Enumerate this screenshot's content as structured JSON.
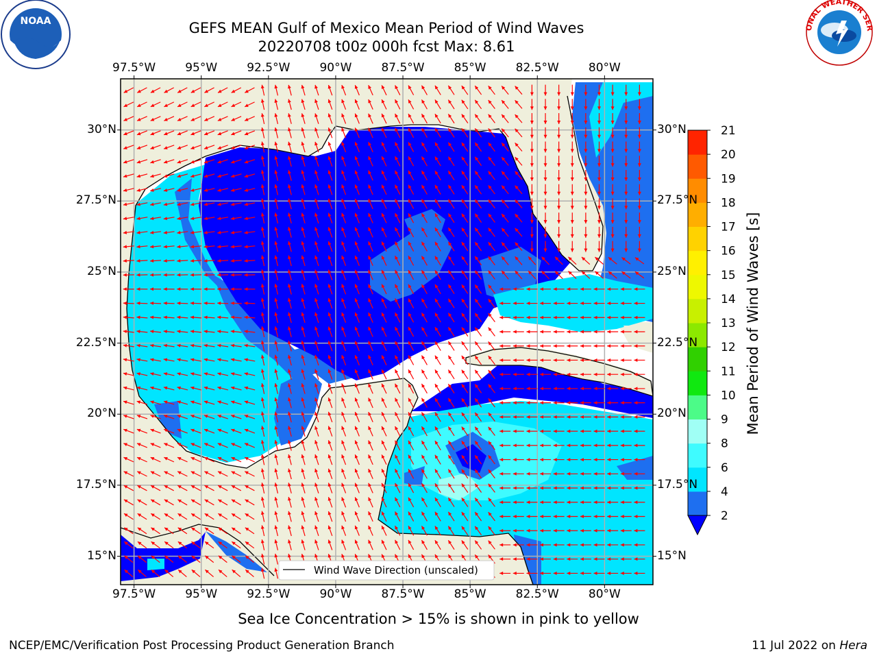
{
  "title": {
    "line1": "GEFS MEAN Gulf of Mexico Mean Period of Wind Waves",
    "line2": "20220708 t00z 000h fcst   Max: 8.61"
  },
  "logos": {
    "noaa": {
      "text": "NOAA",
      "ring_text": "NATIONAL OCEANIC AND ATMOSPHERIC ADMINISTRATION · U.S. DEPARTMENT OF COMMERCE"
    },
    "nws": {
      "ring_text": "NATIONAL WEATHER SERVICE"
    }
  },
  "map": {
    "lon_labels": [
      "97.5°W",
      "95°W",
      "92.5°W",
      "90°W",
      "87.5°W",
      "85°W",
      "82.5°W",
      "80°W"
    ],
    "lat_labels": [
      "30°N",
      "27.5°N",
      "25°N",
      "22.5°N",
      "20°N",
      "17.5°N",
      "15°N"
    ],
    "lon_range": [
      -98,
      -78.2
    ],
    "lat_range": [
      14,
      31.8
    ],
    "legend_label": "Wind Wave Direction (unscaled)",
    "colors": {
      "land": "#efefdc",
      "grid": "#b0b0b0",
      "arrow": "#ff0000",
      "coast": "#000000"
    }
  },
  "colorbar": {
    "label": "Mean Period of Wind Waves [s]",
    "ticks": [
      "2",
      "4",
      "6",
      "8",
      "9",
      "10",
      "11",
      "12",
      "13",
      "14",
      "15",
      "16",
      "17",
      "18",
      "19",
      "20",
      "21"
    ],
    "colors": [
      "#1e6ff0",
      "#00e5ff",
      "#3ffbff",
      "#a0fff5",
      "#4cfb88",
      "#10e810",
      "#30d000",
      "#8ce800",
      "#c8f000",
      "#eef800",
      "#fff000",
      "#ffd200",
      "#ffae00",
      "#ff8c00",
      "#ff5a00",
      "#ff2400"
    ],
    "under_color": "#0000ff"
  },
  "caption": "Sea Ice Concentration > 15% is shown in pink to yellow",
  "footer": {
    "left": "NCEP/EMC/Verification Post Processing Product Generation Branch",
    "date": "11 Jul 2022 on ",
    "machine": "Hera"
  }
}
